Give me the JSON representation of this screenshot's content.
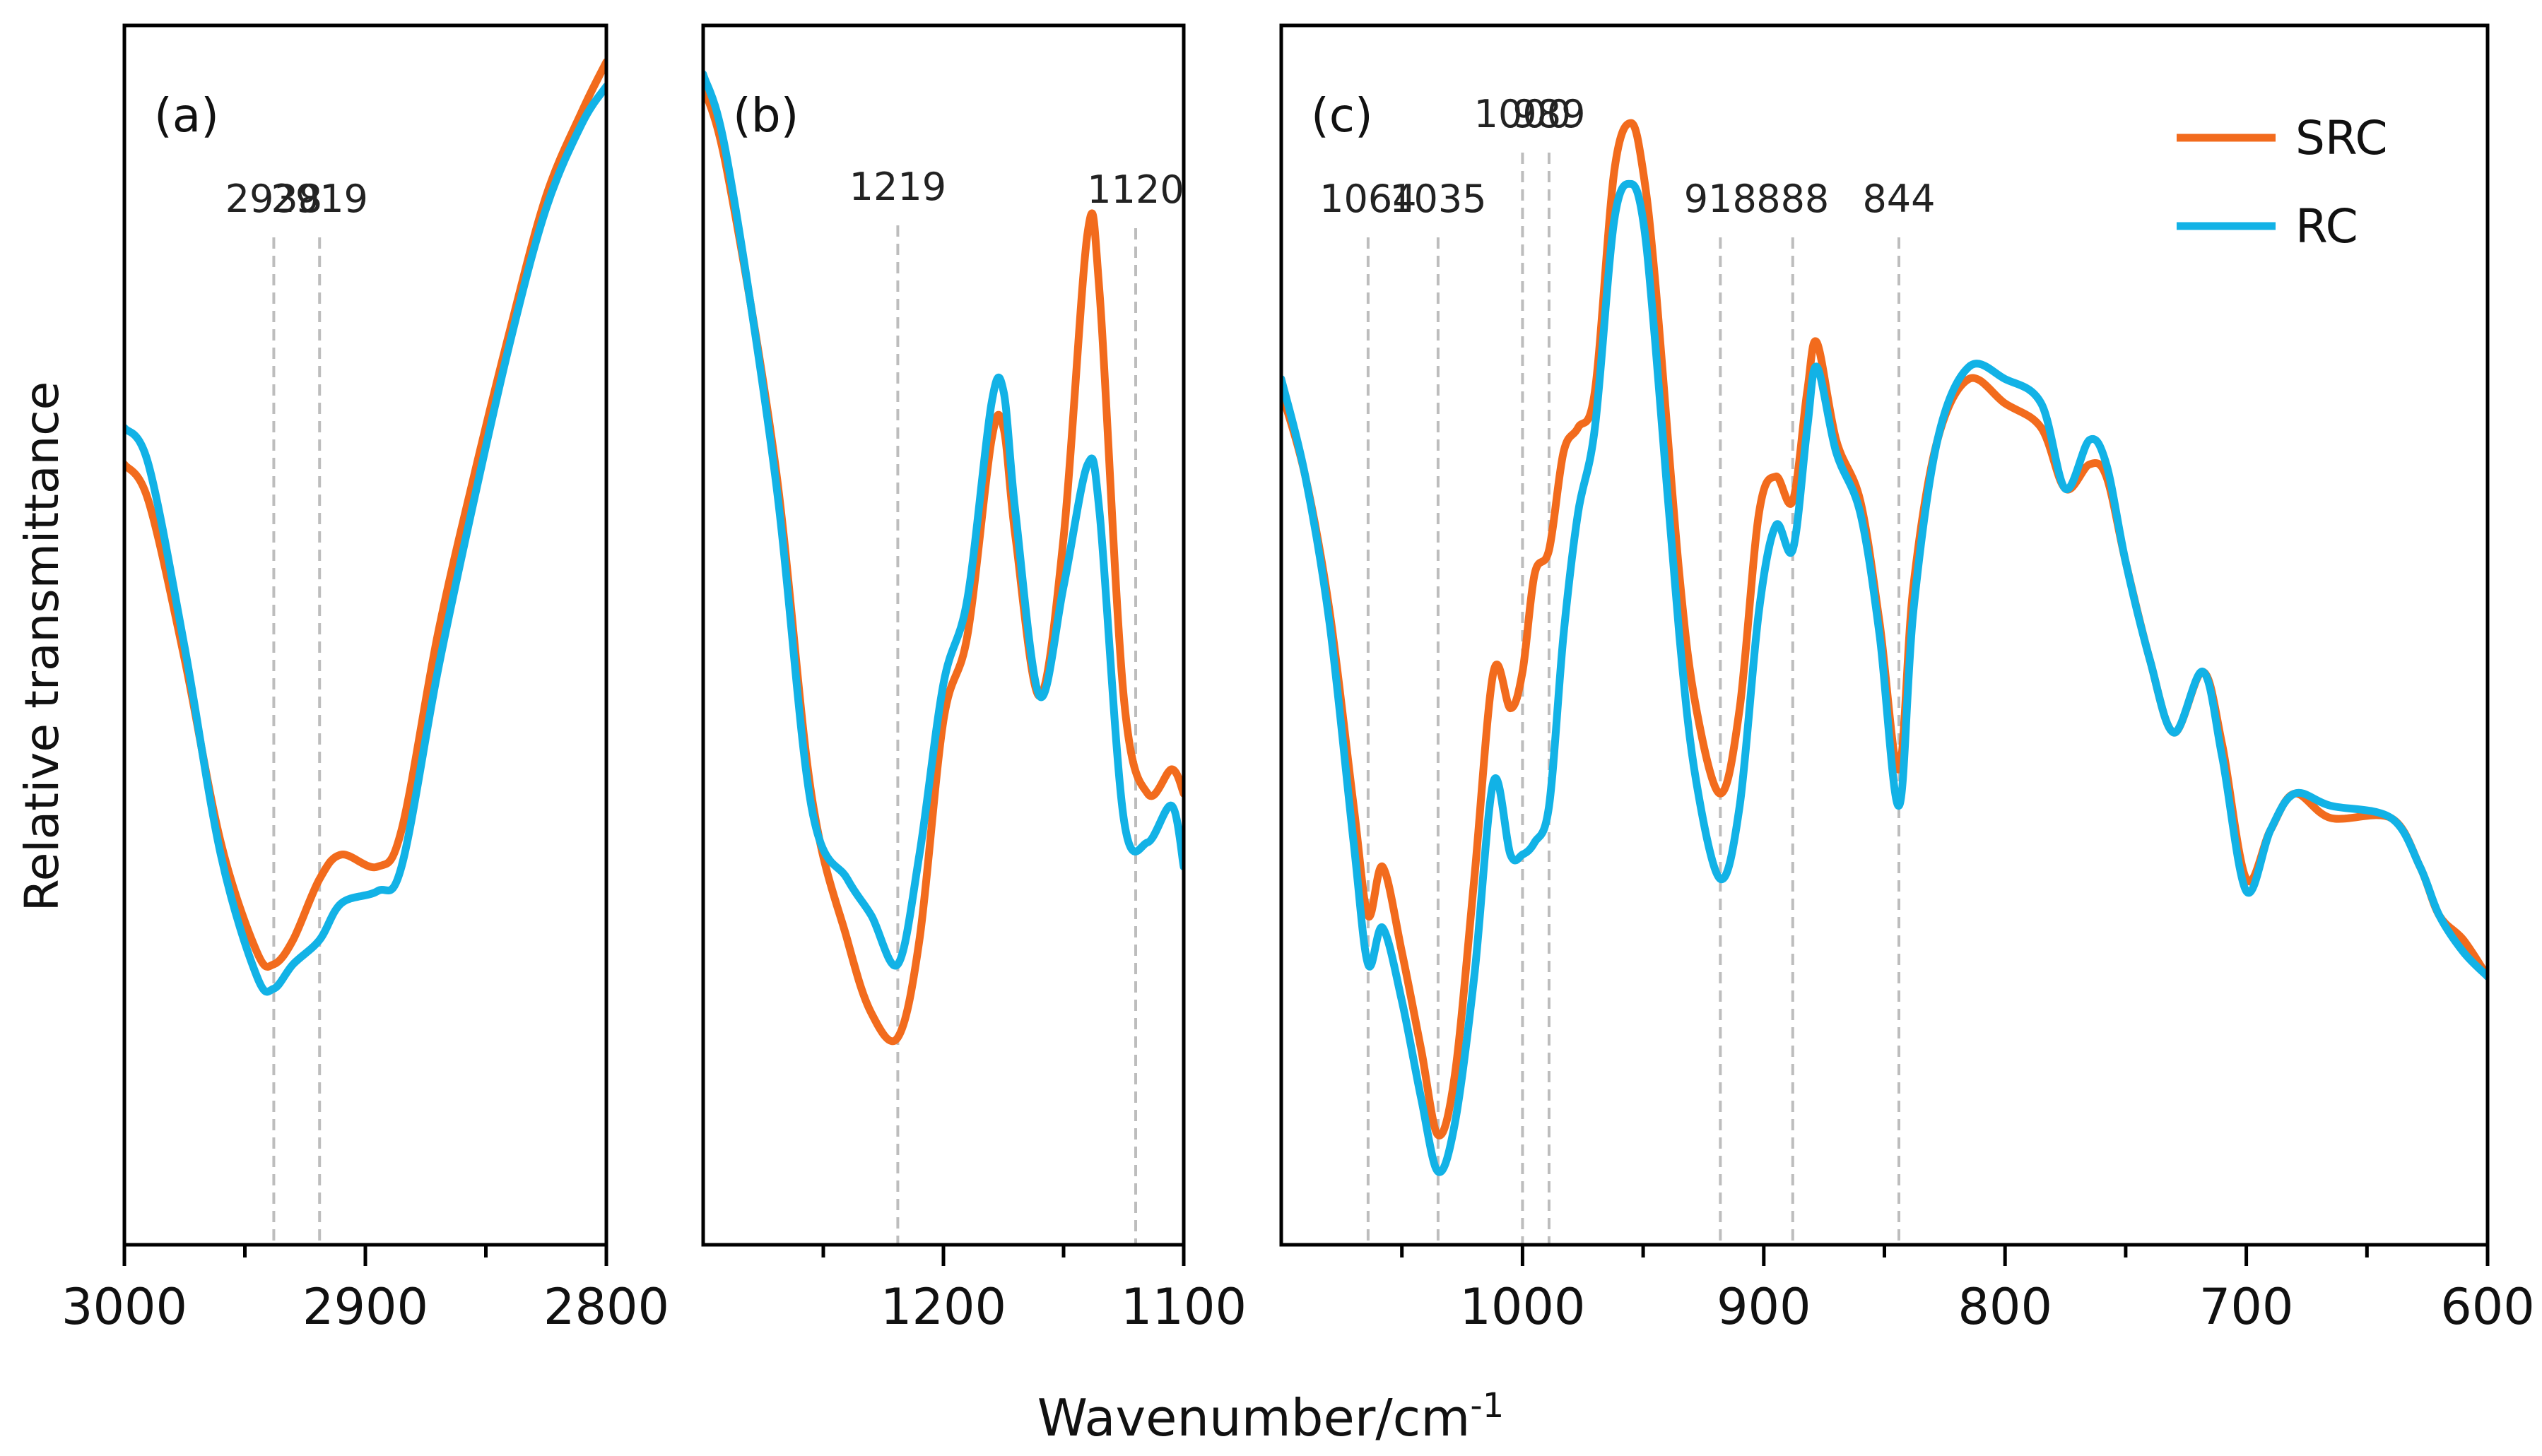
{
  "figure": {
    "ylabel": "Relative transmittance",
    "xlabel_base": "Wavenumber/cm",
    "xlabel_sup": "-1",
    "colors": {
      "SRC": "#F26B1D",
      "RC": "#12B2E6",
      "guide": "#bdbdbd",
      "axis": "#000000"
    }
  },
  "legend": {
    "position": "top-right",
    "entries": [
      "SRC",
      "RC"
    ]
  },
  "chart_data": [
    {
      "type": "line",
      "panel_label": "(a)",
      "xlim": [
        3000,
        2800
      ],
      "ylim": [
        0,
        1
      ],
      "ticks": [
        3000,
        2900,
        2800
      ],
      "minor_ticks": [
        2950,
        2850
      ],
      "annotations": [
        {
          "x": 2938,
          "label": "2938"
        },
        {
          "x": 2919,
          "label": "2919"
        }
      ],
      "series": [
        {
          "name": "SRC",
          "points": [
            [
              3000,
              0.64
            ],
            [
              2990,
              0.61
            ],
            [
              2975,
              0.48
            ],
            [
              2960,
              0.33
            ],
            [
              2945,
              0.24
            ],
            [
              2938,
              0.23
            ],
            [
              2930,
              0.25
            ],
            [
              2919,
              0.3
            ],
            [
              2910,
              0.32
            ],
            [
              2895,
              0.31
            ],
            [
              2885,
              0.34
            ],
            [
              2870,
              0.5
            ],
            [
              2855,
              0.63
            ],
            [
              2840,
              0.75
            ],
            [
              2825,
              0.86
            ],
            [
              2810,
              0.93
            ],
            [
              2800,
              0.97
            ]
          ]
        },
        {
          "name": "RC",
          "points": [
            [
              3000,
              0.67
            ],
            [
              2990,
              0.64
            ],
            [
              2975,
              0.49
            ],
            [
              2960,
              0.32
            ],
            [
              2945,
              0.22
            ],
            [
              2938,
              0.21
            ],
            [
              2930,
              0.23
            ],
            [
              2919,
              0.25
            ],
            [
              2910,
              0.28
            ],
            [
              2895,
              0.29
            ],
            [
              2885,
              0.31
            ],
            [
              2870,
              0.47
            ],
            [
              2855,
              0.61
            ],
            [
              2840,
              0.74
            ],
            [
              2825,
              0.85
            ],
            [
              2810,
              0.92
            ],
            [
              2800,
              0.95
            ]
          ]
        }
      ]
    },
    {
      "type": "line",
      "panel_label": "(b)",
      "xlim": [
        1300,
        1100
      ],
      "ylim": [
        0,
        1
      ],
      "ticks": [
        1200,
        1100
      ],
      "minor_ticks": [
        1250,
        1150
      ],
      "annotations": [
        {
          "x": 1219,
          "label": "1219"
        },
        {
          "x": 1120,
          "label": "1120"
        }
      ],
      "series": [
        {
          "name": "SRC",
          "points": [
            [
              1300,
              0.95
            ],
            [
              1290,
              0.88
            ],
            [
              1270,
              0.64
            ],
            [
              1255,
              0.37
            ],
            [
              1240,
              0.25
            ],
            [
              1230,
              0.19
            ],
            [
              1219,
              0.17
            ],
            [
              1210,
              0.25
            ],
            [
              1200,
              0.43
            ],
            [
              1190,
              0.5
            ],
            [
              1180,
              0.66
            ],
            [
              1175,
              0.67
            ],
            [
              1170,
              0.58
            ],
            [
              1160,
              0.45
            ],
            [
              1150,
              0.58
            ],
            [
              1140,
              0.83
            ],
            [
              1135,
              0.78
            ],
            [
              1125,
              0.45
            ],
            [
              1115,
              0.37
            ],
            [
              1105,
              0.39
            ],
            [
              1100,
              0.37
            ]
          ]
        },
        {
          "name": "RC",
          "points": [
            [
              1300,
              0.96
            ],
            [
              1290,
              0.89
            ],
            [
              1270,
              0.63
            ],
            [
              1255,
              0.36
            ],
            [
              1240,
              0.3
            ],
            [
              1230,
              0.27
            ],
            [
              1219,
              0.23
            ],
            [
              1210,
              0.32
            ],
            [
              1200,
              0.46
            ],
            [
              1190,
              0.53
            ],
            [
              1180,
              0.69
            ],
            [
              1175,
              0.7
            ],
            [
              1170,
              0.6
            ],
            [
              1160,
              0.45
            ],
            [
              1150,
              0.54
            ],
            [
              1140,
              0.64
            ],
            [
              1135,
              0.6
            ],
            [
              1125,
              0.35
            ],
            [
              1115,
              0.33
            ],
            [
              1105,
              0.36
            ],
            [
              1100,
              0.31
            ]
          ]
        }
      ]
    },
    {
      "type": "line",
      "panel_label": "(c)",
      "xlim": [
        1100,
        600
      ],
      "ylim": [
        0,
        1
      ],
      "ticks": [
        1000,
        900,
        800,
        700,
        600
      ],
      "minor_ticks": [
        1050,
        950,
        850,
        750,
        650
      ],
      "annotations": [
        {
          "x": 1064,
          "label": "1064"
        },
        {
          "x": 1035,
          "label": "1035"
        },
        {
          "x": 1000,
          "label": "1000"
        },
        {
          "x": 989,
          "label": "989"
        },
        {
          "x": 918,
          "label": "918"
        },
        {
          "x": 888,
          "label": "888"
        },
        {
          "x": 844,
          "label": "844"
        }
      ],
      "series": [
        {
          "name": "SRC",
          "points": [
            [
              1100,
              0.7
            ],
            [
              1090,
              0.63
            ],
            [
              1080,
              0.52
            ],
            [
              1070,
              0.36
            ],
            [
              1064,
              0.27
            ],
            [
              1058,
              0.31
            ],
            [
              1050,
              0.24
            ],
            [
              1042,
              0.16
            ],
            [
              1035,
              0.09
            ],
            [
              1028,
              0.14
            ],
            [
              1020,
              0.3
            ],
            [
              1012,
              0.47
            ],
            [
              1005,
              0.44
            ],
            [
              1000,
              0.47
            ],
            [
              995,
              0.55
            ],
            [
              989,
              0.57
            ],
            [
              983,
              0.65
            ],
            [
              977,
              0.67
            ],
            [
              970,
              0.7
            ],
            [
              962,
              0.88
            ],
            [
              955,
              0.92
            ],
            [
              950,
              0.88
            ],
            [
              945,
              0.79
            ],
            [
              935,
              0.55
            ],
            [
              928,
              0.44
            ],
            [
              918,
              0.37
            ],
            [
              910,
              0.44
            ],
            [
              902,
              0.6
            ],
            [
              895,
              0.63
            ],
            [
              888,
              0.61
            ],
            [
              882,
              0.7
            ],
            [
              878,
              0.74
            ],
            [
              870,
              0.66
            ],
            [
              860,
              0.61
            ],
            [
              852,
              0.51
            ],
            [
              844,
              0.39
            ],
            [
              838,
              0.54
            ],
            [
              828,
              0.66
            ],
            [
              815,
              0.71
            ],
            [
              800,
              0.69
            ],
            [
              785,
              0.67
            ],
            [
              775,
              0.62
            ],
            [
              765,
              0.64
            ],
            [
              758,
              0.63
            ],
            [
              750,
              0.56
            ],
            [
              740,
              0.48
            ],
            [
              730,
              0.42
            ],
            [
              718,
              0.47
            ],
            [
              710,
              0.41
            ],
            [
              700,
              0.3
            ],
            [
              690,
              0.34
            ],
            [
              680,
              0.37
            ],
            [
              665,
              0.35
            ],
            [
              640,
              0.35
            ],
            [
              628,
              0.31
            ],
            [
              620,
              0.27
            ],
            [
              610,
              0.25
            ],
            [
              600,
              0.22
            ]
          ]
        },
        {
          "name": "RC",
          "points": [
            [
              1100,
              0.71
            ],
            [
              1090,
              0.63
            ],
            [
              1080,
              0.51
            ],
            [
              1070,
              0.33
            ],
            [
              1064,
              0.23
            ],
            [
              1058,
              0.26
            ],
            [
              1050,
              0.2
            ],
            [
              1042,
              0.12
            ],
            [
              1035,
              0.06
            ],
            [
              1028,
              0.1
            ],
            [
              1020,
              0.22
            ],
            [
              1012,
              0.38
            ],
            [
              1005,
              0.32
            ],
            [
              1000,
              0.32
            ],
            [
              995,
              0.33
            ],
            [
              989,
              0.36
            ],
            [
              983,
              0.5
            ],
            [
              977,
              0.6
            ],
            [
              970,
              0.67
            ],
            [
              962,
              0.84
            ],
            [
              955,
              0.87
            ],
            [
              950,
              0.84
            ],
            [
              945,
              0.74
            ],
            [
              935,
              0.5
            ],
            [
              928,
              0.38
            ],
            [
              918,
              0.3
            ],
            [
              910,
              0.36
            ],
            [
              902,
              0.52
            ],
            [
              895,
              0.59
            ],
            [
              888,
              0.57
            ],
            [
              882,
              0.67
            ],
            [
              878,
              0.72
            ],
            [
              870,
              0.65
            ],
            [
              860,
              0.6
            ],
            [
              852,
              0.5
            ],
            [
              844,
              0.36
            ],
            [
              838,
              0.52
            ],
            [
              828,
              0.66
            ],
            [
              815,
              0.72
            ],
            [
              800,
              0.71
            ],
            [
              785,
              0.69
            ],
            [
              775,
              0.62
            ],
            [
              765,
              0.66
            ],
            [
              758,
              0.64
            ],
            [
              750,
              0.56
            ],
            [
              740,
              0.48
            ],
            [
              730,
              0.42
            ],
            [
              718,
              0.47
            ],
            [
              710,
              0.4
            ],
            [
              700,
              0.29
            ],
            [
              690,
              0.34
            ],
            [
              680,
              0.37
            ],
            [
              665,
              0.36
            ],
            [
              640,
              0.35
            ],
            [
              628,
              0.31
            ],
            [
              620,
              0.27
            ],
            [
              610,
              0.24
            ],
            [
              600,
              0.22
            ]
          ]
        }
      ]
    }
  ]
}
